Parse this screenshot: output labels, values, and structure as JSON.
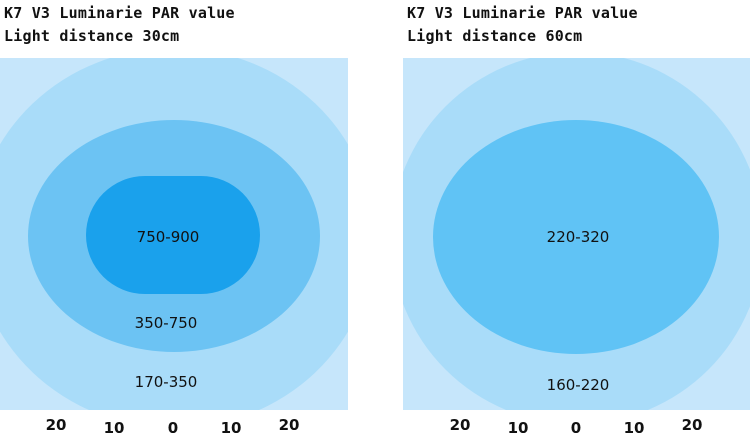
{
  "colors": {
    "outer": "#c6e6fb",
    "ring1": "#a9dcf9",
    "ring2": "#6cc3f3",
    "center_left": "#1aa1ec",
    "center_right": "#60c3f5"
  },
  "panels": [
    {
      "title_line1": "K7 V3 Luminarie PAR value",
      "title_line2": "Light distance 30cm",
      "zones": [
        "750-900",
        "350-750",
        "170-350"
      ],
      "ticks": [
        "20",
        "10",
        "0",
        "10",
        "20"
      ]
    },
    {
      "title_line1": "K7 V3 Luminarie PAR value",
      "title_line2": "Light distance 60cm",
      "zones": [
        "220-320",
        "160-220"
      ],
      "ticks": [
        "20",
        "10",
        "0",
        "10",
        "20"
      ]
    }
  ]
}
